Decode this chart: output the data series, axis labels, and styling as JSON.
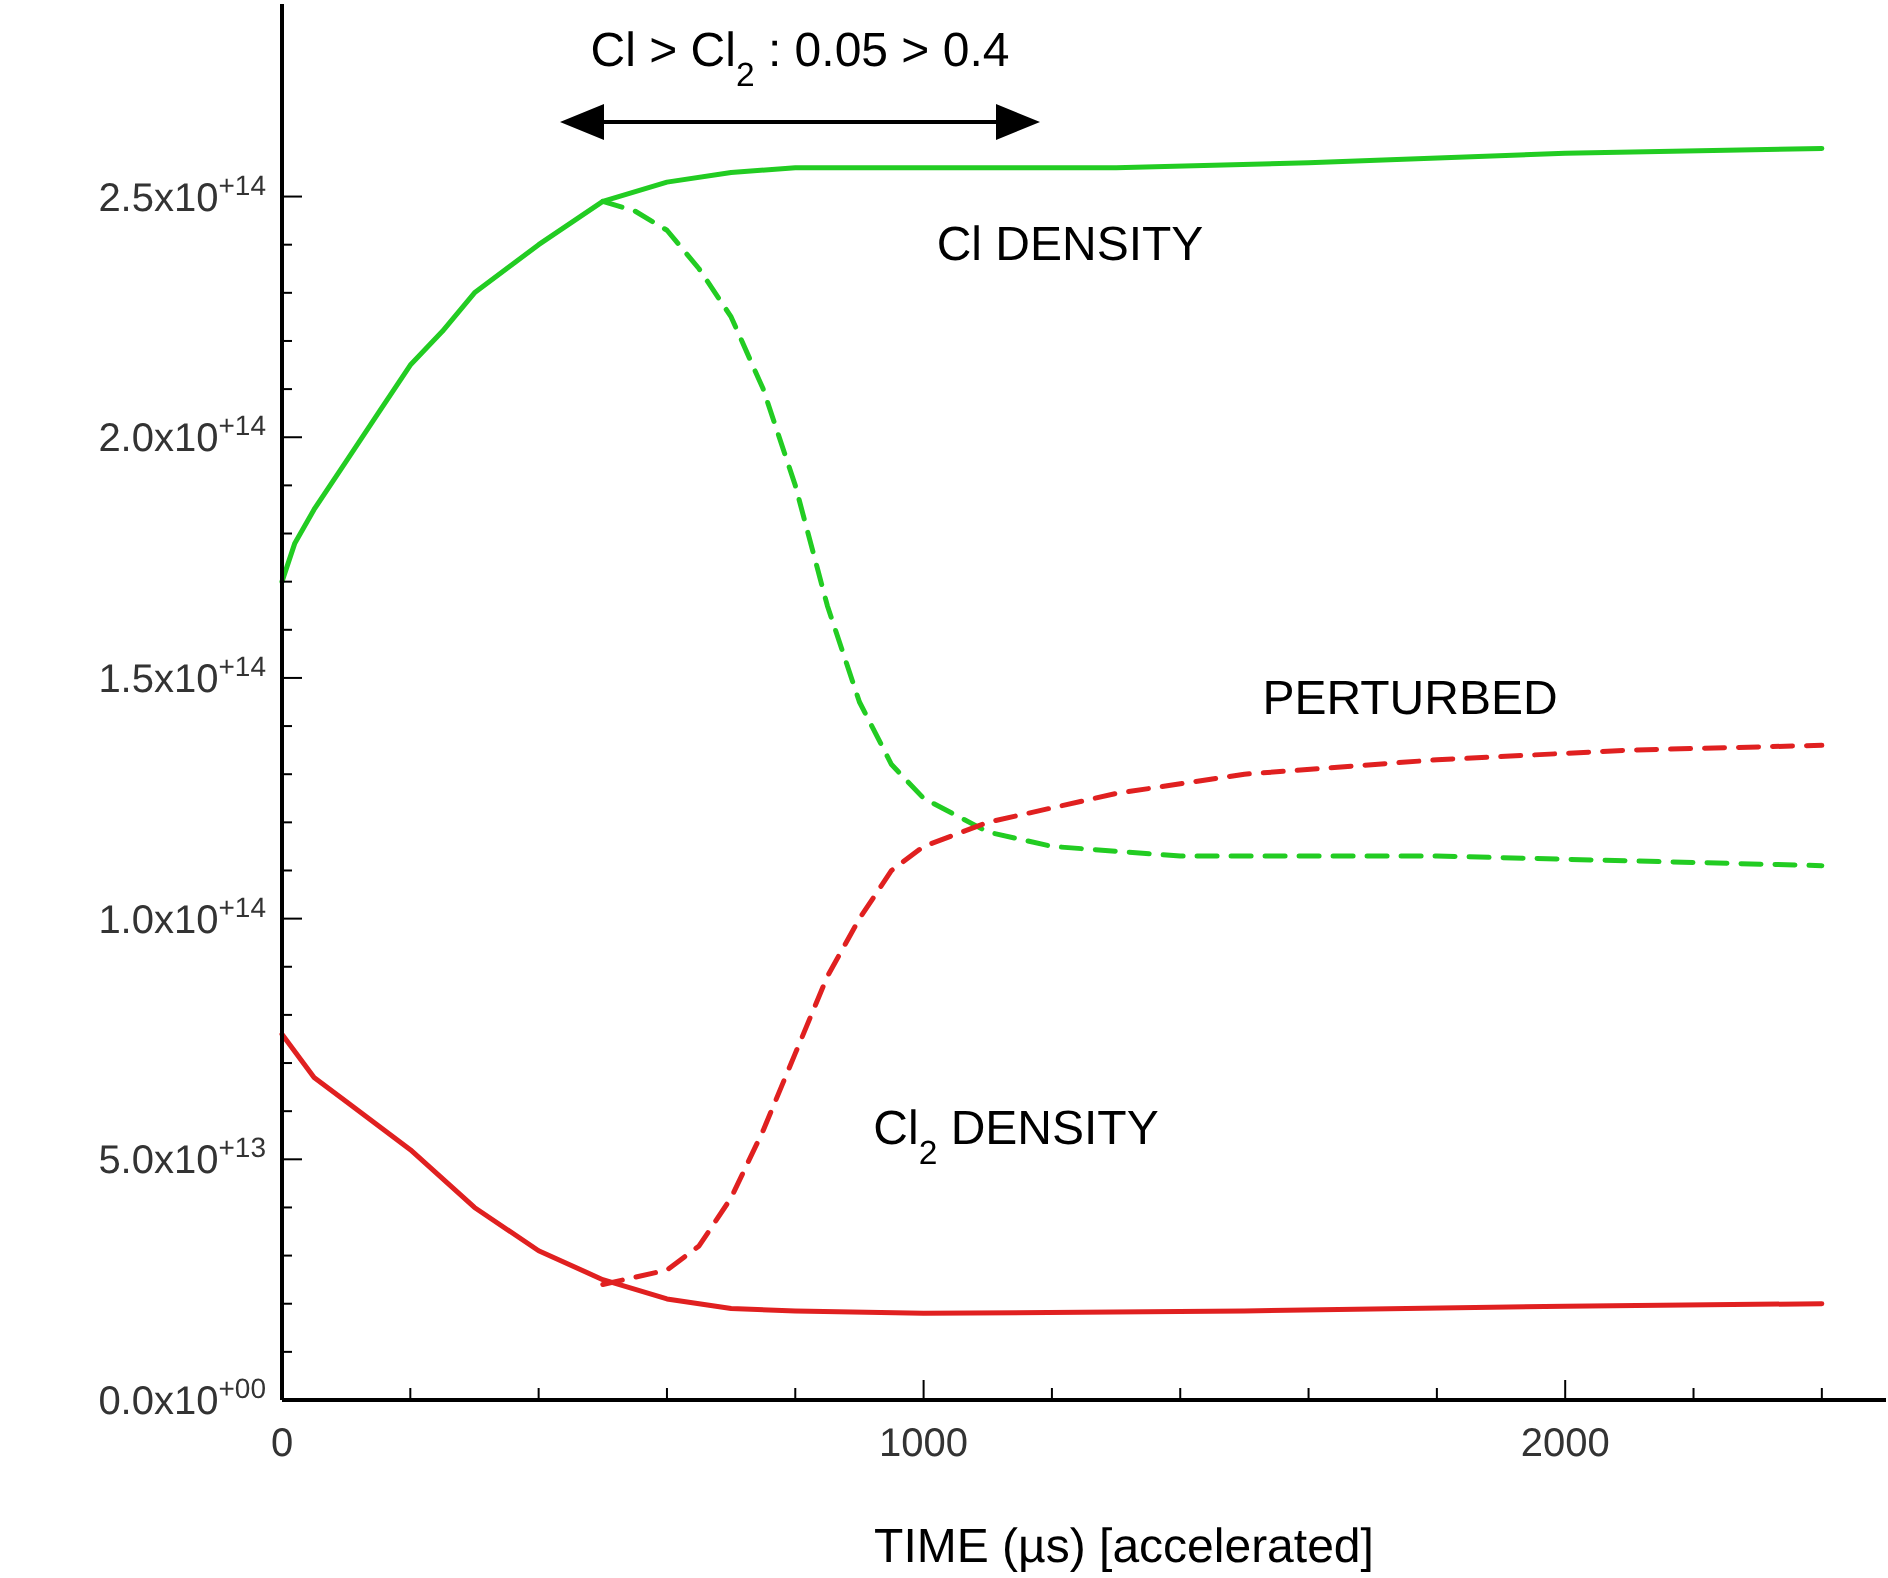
{
  "chart_data": {
    "type": "line",
    "xlabel": "TIME (µs) [accelerated]",
    "xlim": [
      0,
      2500
    ],
    "ylim": [
      0,
      290000000000000.0
    ],
    "xticks": [
      0,
      {
        "value": 200,
        "label": null
      },
      {
        "value": 400,
        "label": null
      },
      {
        "value": 600,
        "label": null
      },
      {
        "value": 800,
        "label": null
      },
      1000,
      {
        "value": 1200,
        "label": null
      },
      {
        "value": 1400,
        "label": null
      },
      {
        "value": 1600,
        "label": null
      },
      {
        "value": 1800,
        "label": null
      },
      2000,
      {
        "value": 2200,
        "label": null
      },
      {
        "value": 2400,
        "label": null
      }
    ],
    "yticks": [
      {
        "value": 0,
        "label": "0.0x10$^{+00}$"
      },
      {
        "value": 10000000000000.0,
        "label": null
      },
      {
        "value": 20000000000000.0,
        "label": null
      },
      {
        "value": 30000000000000.0,
        "label": null
      },
      {
        "value": 40000000000000.0,
        "label": null
      },
      {
        "value": 50000000000000.0,
        "label": "5.0x10$^{+13}$"
      },
      {
        "value": 60000000000000.0,
        "label": null
      },
      {
        "value": 70000000000000.0,
        "label": null
      },
      {
        "value": 80000000000000.0,
        "label": null
      },
      {
        "value": 90000000000000.0,
        "label": null
      },
      {
        "value": 100000000000000.0,
        "label": "1.0x10$^{+14}$"
      },
      {
        "value": 110000000000000.0,
        "label": null
      },
      {
        "value": 120000000000000.0,
        "label": null
      },
      {
        "value": 130000000000000.0,
        "label": null
      },
      {
        "value": 140000000000000.0,
        "label": null
      },
      {
        "value": 150000000000000.0,
        "label": "1.5x10$^{+14}$"
      },
      {
        "value": 160000000000000.0,
        "label": null
      },
      {
        "value": 170000000000000.0,
        "label": null
      },
      {
        "value": 180000000000000.0,
        "label": null
      },
      {
        "value": 190000000000000.0,
        "label": null
      },
      {
        "value": 200000000000000.0,
        "label": "2.0x10$^{+14}$"
      },
      {
        "value": 210000000000000.0,
        "label": null
      },
      {
        "value": 220000000000000.0,
        "label": null
      },
      {
        "value": 230000000000000.0,
        "label": null
      },
      {
        "value": 240000000000000.0,
        "label": null
      },
      {
        "value": 250000000000000.0,
        "label": "2.5x10$^{+14}$"
      }
    ],
    "series": [
      {
        "color": "#22cc22",
        "line_style": "solid",
        "x": [
          0,
          20,
          50,
          100,
          150,
          200,
          250,
          300,
          400,
          500,
          600,
          700,
          800,
          1000,
          1300,
          1600,
          2000,
          2400
        ],
        "values": [
          170000000000000.0,
          178000000000000.0,
          185000000000000.0,
          195000000000000.0,
          205000000000000.0,
          215000000000000.0,
          222000000000000.0,
          230000000000000.0,
          240000000000000.0,
          249000000000000.0,
          253000000000000.0,
          255000000000000.0,
          256000000000000.0,
          256000000000000.0,
          256000000000000.0,
          257000000000000.0,
          259000000000000.0,
          260000000000000.0
        ]
      },
      {
        "color": "#22cc22",
        "line_style": "dashed",
        "x": [
          500,
          550,
          600,
          650,
          700,
          750,
          800,
          850,
          900,
          950,
          1000,
          1100,
          1200,
          1400,
          1800,
          2100,
          2400
        ],
        "values": [
          249000000000000.0,
          247000000000000.0,
          243000000000000.0,
          235000000000000.0,
          225000000000000.0,
          210000000000000.0,
          190000000000000.0,
          165000000000000.0,
          145000000000000.0,
          132000000000000.0,
          125000000000000.0,
          118000000000000.0,
          115000000000000.0,
          113000000000000.0,
          113000000000000.0,
          112000000000000.0,
          111000000000000.0
        ]
      },
      {
        "color": "#e02020",
        "line_style": "solid",
        "x": [
          0,
          50,
          100,
          200,
          300,
          400,
          500,
          600,
          700,
          800,
          1000,
          1500,
          2000,
          2400
        ],
        "values": [
          76000000000000.0,
          67000000000000.0,
          62000000000000.0,
          52000000000000.0,
          40000000000000.0,
          31000000000000.0,
          25000000000000.0,
          21000000000000.0,
          19000000000000.0,
          18500000000000.0,
          18000000000000.0,
          18500000000000.0,
          19500000000000.0,
          20000000000000.0
        ]
      },
      {
        "color": "#e02020",
        "line_style": "dashed",
        "x": [
          500,
          600,
          650,
          700,
          750,
          800,
          850,
          900,
          950,
          1000,
          1100,
          1300,
          1500,
          1800,
          2100,
          2400
        ],
        "values": [
          24000000000000.0,
          27000000000000.0,
          32000000000000.0,
          42000000000000.0,
          56000000000000.0,
          72000000000000.0,
          88000000000000.0,
          100000000000000.0,
          110000000000000.0,
          115000000000000.0,
          120000000000000.0,
          126000000000000.0,
          130000000000000.0,
          133000000000000.0,
          135000000000000.0,
          136000000000000.0
        ]
      }
    ],
    "annotations": [
      "Cl > Cl$_{2}$ : 0.05 > 0.4",
      "Cl DENSITY",
      "PERTURBED",
      "Cl$_{2}$ DENSITY"
    ]
  }
}
